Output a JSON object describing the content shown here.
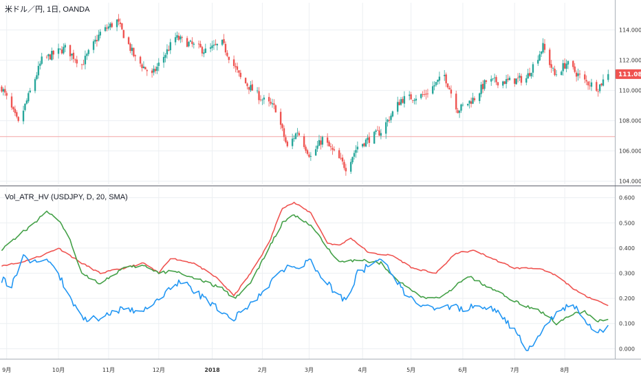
{
  "chart_data": [
    {
      "type": "candlestick",
      "title": "米ドル／円, 1日, OANDA",
      "price_badge": "111.080",
      "last_price": 111.08,
      "horizontal_line": 106.95,
      "ylim": [
        103.8,
        115.8
      ],
      "yticks": [
        {
          "value": 104,
          "label": "104.000"
        },
        {
          "value": 106,
          "label": "106.000"
        },
        {
          "value": 108,
          "label": "108.000"
        },
        {
          "value": 110,
          "label": "110.000"
        },
        {
          "value": 112,
          "label": "112.000"
        },
        {
          "value": 114,
          "label": "114.000"
        }
      ],
      "up_color": "#26a69a",
      "down_color": "#ef5350",
      "key_points": [
        {
          "date": "2017-08-29",
          "close": 110.2
        },
        {
          "date": "2017-09-08",
          "close": 107.8
        },
        {
          "date": "2017-09-22",
          "close": 112.0
        },
        {
          "date": "2017-10-06",
          "close": 112.8
        },
        {
          "date": "2017-10-16",
          "close": 111.7
        },
        {
          "date": "2017-10-27",
          "close": 113.8
        },
        {
          "date": "2017-11-06",
          "close": 114.6
        },
        {
          "date": "2017-11-17",
          "close": 112.1
        },
        {
          "date": "2017-11-27",
          "close": 111.0
        },
        {
          "date": "2017-12-11",
          "close": 113.5
        },
        {
          "date": "2017-12-29",
          "close": 112.6
        },
        {
          "date": "2018-01-08",
          "close": 113.1
        },
        {
          "date": "2018-01-19",
          "close": 110.8
        },
        {
          "date": "2018-02-01",
          "close": 109.4
        },
        {
          "date": "2018-02-09",
          "close": 108.8
        },
        {
          "date": "2018-02-16",
          "close": 106.2
        },
        {
          "date": "2018-02-22",
          "close": 107.3
        },
        {
          "date": "2018-03-02",
          "close": 105.6
        },
        {
          "date": "2018-03-09",
          "close": 106.8
        },
        {
          "date": "2018-03-23",
          "close": 104.9
        },
        {
          "date": "2018-03-30",
          "close": 106.3
        },
        {
          "date": "2018-04-13",
          "close": 107.3
        },
        {
          "date": "2018-04-25",
          "close": 109.4
        },
        {
          "date": "2018-05-09",
          "close": 109.7
        },
        {
          "date": "2018-05-21",
          "close": 111.0
        },
        {
          "date": "2018-05-29",
          "close": 108.7
        },
        {
          "date": "2018-06-08",
          "close": 109.5
        },
        {
          "date": "2018-06-15",
          "close": 110.6
        },
        {
          "date": "2018-06-28",
          "close": 110.6
        },
        {
          "date": "2018-07-09",
          "close": 110.8
        },
        {
          "date": "2018-07-19",
          "close": 112.9
        },
        {
          "date": "2018-07-26",
          "close": 111.0
        },
        {
          "date": "2018-08-02",
          "close": 111.8
        },
        {
          "date": "2018-08-13",
          "close": 110.6
        },
        {
          "date": "2018-08-21",
          "close": 110.2
        },
        {
          "date": "2018-08-27",
          "close": 111.1
        }
      ]
    },
    {
      "type": "line",
      "title": "Vol_ATR_HV (USDJPY, D, 20, SMA)",
      "ylim": [
        -0.04,
        0.64
      ],
      "yticks": [
        {
          "value": 0.0,
          "label": "0.000"
        },
        {
          "value": 0.1,
          "label": "0.100"
        },
        {
          "value": 0.2,
          "label": "0.200"
        },
        {
          "value": 0.3,
          "label": "0.300"
        },
        {
          "value": 0.4,
          "label": "0.400"
        },
        {
          "value": 0.5,
          "label": "0.500"
        },
        {
          "value": 0.6,
          "label": "0.600"
        }
      ],
      "series": [
        {
          "color": "#ef5350",
          "points": [
            [
              "2017-08-28",
              0.33
            ],
            [
              "2017-09-08",
              0.34
            ],
            [
              "2017-09-22",
              0.37
            ],
            [
              "2017-10-02",
              0.4
            ],
            [
              "2017-10-16",
              0.34
            ],
            [
              "2017-10-27",
              0.3
            ],
            [
              "2017-11-10",
              0.32
            ],
            [
              "2017-11-22",
              0.34
            ],
            [
              "2017-12-01",
              0.3
            ],
            [
              "2017-12-08",
              0.36
            ],
            [
              "2017-12-22",
              0.34
            ],
            [
              "2018-01-05",
              0.28
            ],
            [
              "2018-01-15",
              0.21
            ],
            [
              "2018-01-25",
              0.3
            ],
            [
              "2018-02-05",
              0.42
            ],
            [
              "2018-02-13",
              0.56
            ],
            [
              "2018-02-20",
              0.58
            ],
            [
              "2018-03-02",
              0.54
            ],
            [
              "2018-03-12",
              0.42
            ],
            [
              "2018-03-19",
              0.41
            ],
            [
              "2018-03-26",
              0.44
            ],
            [
              "2018-04-06",
              0.38
            ],
            [
              "2018-04-20",
              0.37
            ],
            [
              "2018-05-02",
              0.32
            ],
            [
              "2018-05-16",
              0.3
            ],
            [
              "2018-05-28",
              0.38
            ],
            [
              "2018-06-08",
              0.39
            ],
            [
              "2018-06-18",
              0.36
            ],
            [
              "2018-07-02",
              0.32
            ],
            [
              "2018-07-16",
              0.32
            ],
            [
              "2018-07-27",
              0.29
            ],
            [
              "2018-08-10",
              0.22
            ],
            [
              "2018-08-21",
              0.19
            ],
            [
              "2018-08-28",
              0.17
            ]
          ]
        },
        {
          "color": "#43a047",
          "points": [
            [
              "2017-08-28",
              0.39
            ],
            [
              "2017-09-08",
              0.45
            ],
            [
              "2017-09-18",
              0.5
            ],
            [
              "2017-09-25",
              0.55
            ],
            [
              "2017-10-02",
              0.51
            ],
            [
              "2017-10-09",
              0.43
            ],
            [
              "2017-10-16",
              0.3
            ],
            [
              "2017-10-27",
              0.26
            ],
            [
              "2017-11-10",
              0.32
            ],
            [
              "2017-11-22",
              0.33
            ],
            [
              "2017-12-01",
              0.3
            ],
            [
              "2017-12-11",
              0.31
            ],
            [
              "2017-12-22",
              0.28
            ],
            [
              "2018-01-08",
              0.24
            ],
            [
              "2018-01-15",
              0.2
            ],
            [
              "2018-01-25",
              0.26
            ],
            [
              "2018-02-05",
              0.4
            ],
            [
              "2018-02-13",
              0.5
            ],
            [
              "2018-02-20",
              0.53
            ],
            [
              "2018-03-02",
              0.49
            ],
            [
              "2018-03-12",
              0.4
            ],
            [
              "2018-03-19",
              0.35
            ],
            [
              "2018-04-02",
              0.35
            ],
            [
              "2018-04-13",
              0.34
            ],
            [
              "2018-04-25",
              0.26
            ],
            [
              "2018-05-09",
              0.2
            ],
            [
              "2018-05-21",
              0.21
            ],
            [
              "2018-06-04",
              0.29
            ],
            [
              "2018-06-15",
              0.25
            ],
            [
              "2018-06-29",
              0.2
            ],
            [
              "2018-07-09",
              0.17
            ],
            [
              "2018-07-20",
              0.14
            ],
            [
              "2018-07-27",
              0.1
            ],
            [
              "2018-08-03",
              0.13
            ],
            [
              "2018-08-13",
              0.15
            ],
            [
              "2018-08-20",
              0.11
            ],
            [
              "2018-08-28",
              0.12
            ]
          ]
        },
        {
          "color": "#2196f3",
          "points": [
            [
              "2017-08-28",
              0.28
            ],
            [
              "2017-09-04",
              0.25
            ],
            [
              "2017-09-11",
              0.37
            ],
            [
              "2017-09-18",
              0.34
            ],
            [
              "2017-09-25",
              0.35
            ],
            [
              "2017-10-02",
              0.3
            ],
            [
              "2017-10-09",
              0.2
            ],
            [
              "2017-10-16",
              0.12
            ],
            [
              "2017-10-27",
              0.12
            ],
            [
              "2017-11-10",
              0.16
            ],
            [
              "2017-11-22",
              0.15
            ],
            [
              "2017-12-01",
              0.2
            ],
            [
              "2017-12-08",
              0.24
            ],
            [
              "2017-12-15",
              0.27
            ],
            [
              "2017-12-22",
              0.23
            ],
            [
              "2018-01-05",
              0.16
            ],
            [
              "2018-01-15",
              0.12
            ],
            [
              "2018-01-22",
              0.16
            ],
            [
              "2018-02-01",
              0.22
            ],
            [
              "2018-02-09",
              0.29
            ],
            [
              "2018-02-16",
              0.32
            ],
            [
              "2018-02-23",
              0.33
            ],
            [
              "2018-03-02",
              0.35
            ],
            [
              "2018-03-09",
              0.28
            ],
            [
              "2018-03-16",
              0.23
            ],
            [
              "2018-03-23",
              0.19
            ],
            [
              "2018-03-30",
              0.3
            ],
            [
              "2018-04-06",
              0.33
            ],
            [
              "2018-04-13",
              0.35
            ],
            [
              "2018-04-20",
              0.3
            ],
            [
              "2018-04-27",
              0.22
            ],
            [
              "2018-05-04",
              0.18
            ],
            [
              "2018-05-11",
              0.16
            ],
            [
              "2018-05-21",
              0.17
            ],
            [
              "2018-06-01",
              0.16
            ],
            [
              "2018-06-12",
              0.17
            ],
            [
              "2018-06-22",
              0.15
            ],
            [
              "2018-07-02",
              0.07
            ],
            [
              "2018-07-09",
              0.0
            ],
            [
              "2018-07-13",
              0.0
            ],
            [
              "2018-07-20",
              0.09
            ],
            [
              "2018-07-27",
              0.14
            ],
            [
              "2018-08-03",
              0.17
            ],
            [
              "2018-08-08",
              0.16
            ],
            [
              "2018-08-14",
              0.11
            ],
            [
              "2018-08-21",
              0.06
            ],
            [
              "2018-08-28",
              0.1
            ]
          ]
        }
      ]
    }
  ],
  "x_axis": {
    "start": "2017-08-28",
    "end": "2018-08-31",
    "ticks": [
      {
        "date": "2017-09-01",
        "label": "9月",
        "bold": false
      },
      {
        "date": "2017-10-02",
        "label": "10月",
        "bold": false
      },
      {
        "date": "2017-11-01",
        "label": "11月",
        "bold": false
      },
      {
        "date": "2017-12-01",
        "label": "12月",
        "bold": false
      },
      {
        "date": "2018-01-02",
        "label": "2018",
        "bold": true
      },
      {
        "date": "2018-02-01",
        "label": "2月",
        "bold": false
      },
      {
        "date": "2018-03-01",
        "label": "3月",
        "bold": false
      },
      {
        "date": "2018-04-02",
        "label": "4月",
        "bold": false
      },
      {
        "date": "2018-05-01",
        "label": "5月",
        "bold": false
      },
      {
        "date": "2018-06-01",
        "label": "6月",
        "bold": false
      },
      {
        "date": "2018-07-02",
        "label": "7月",
        "bold": false
      },
      {
        "date": "2018-08-01",
        "label": "8月",
        "bold": false
      }
    ]
  },
  "colors": {
    "grid": "#eceff2",
    "axis": "#aab0b8",
    "separator": "#5d606b",
    "hline": "#f4a6a6",
    "badge": "#ef5350"
  }
}
